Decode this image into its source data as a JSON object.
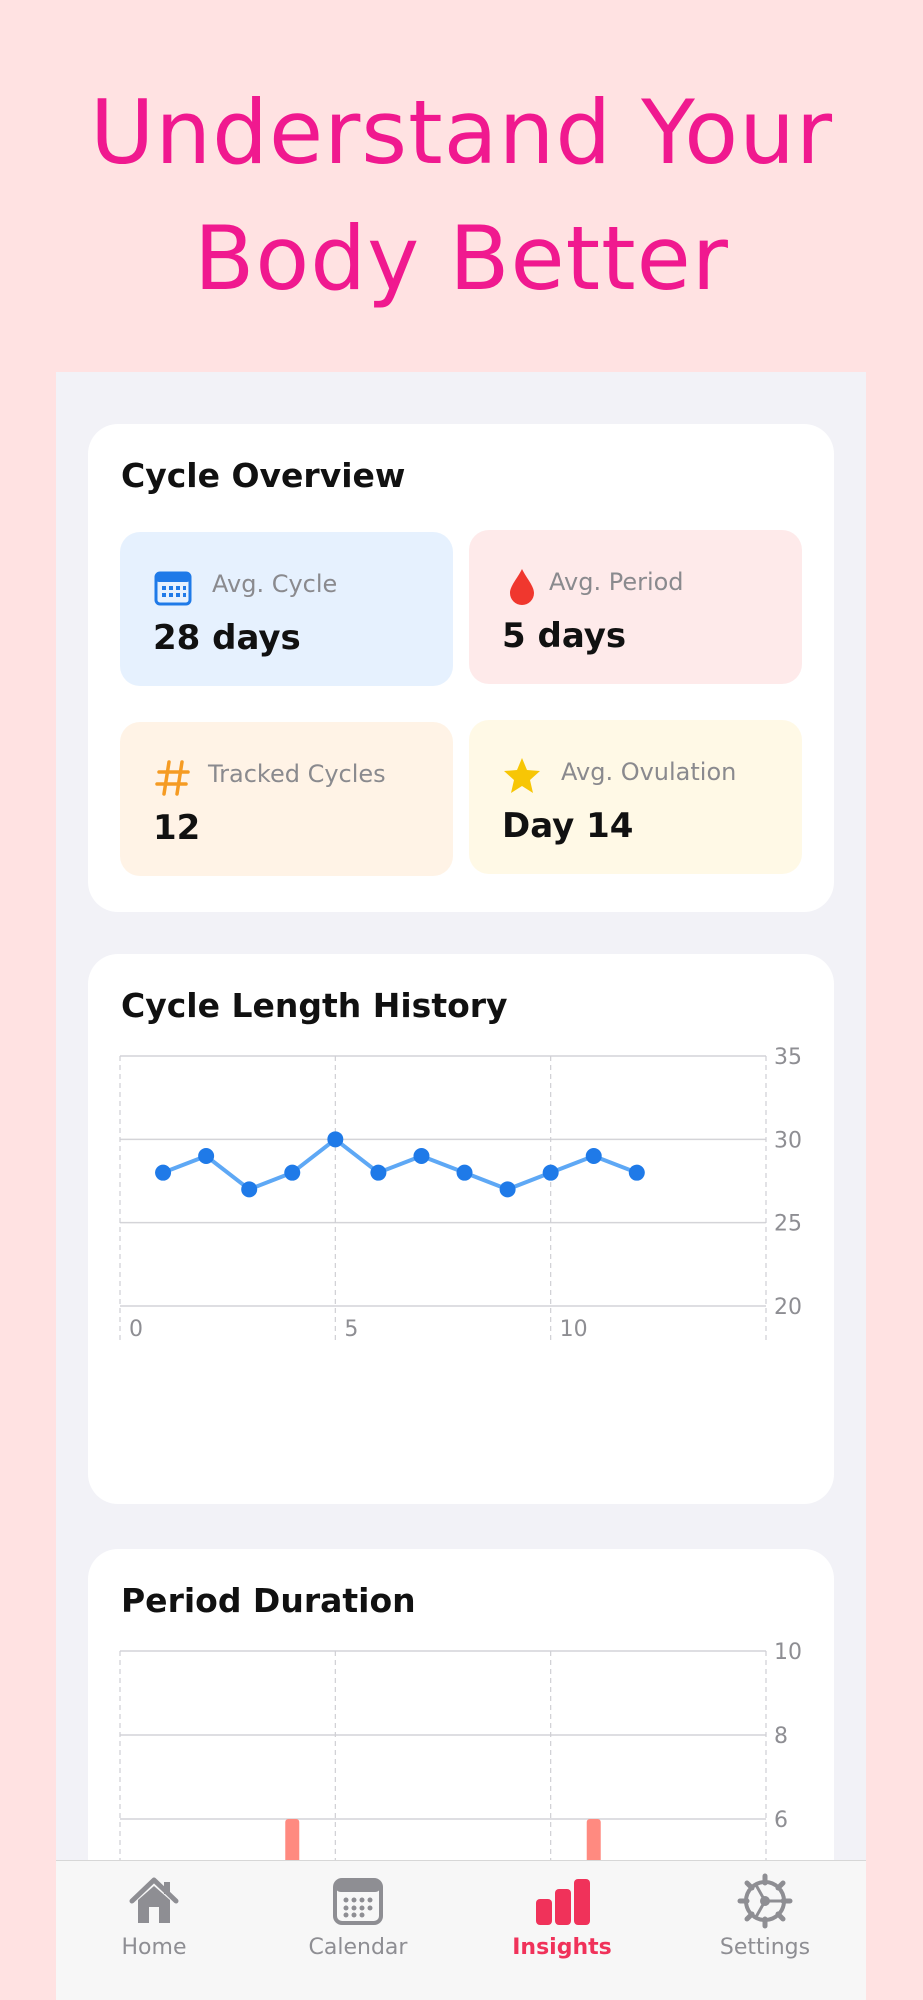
{
  "headline": {
    "line1": "Understand Your",
    "line2": "Body Better"
  },
  "overview": {
    "title": "Cycle Overview",
    "tiles": [
      {
        "icon": "calendar-icon",
        "label": "Avg. Cycle",
        "value": "28 days",
        "bg": "#e6f1fe",
        "color": "#1f7ae8"
      },
      {
        "icon": "drop-icon",
        "label": "Avg. Period",
        "value": "5 days",
        "bg": "#feeaea",
        "color": "#f0372e"
      },
      {
        "icon": "hash-icon",
        "label": "Tracked Cycles",
        "value": "12",
        "bg": "#fff3e6",
        "color": "#f59b23"
      },
      {
        "icon": "star-icon",
        "label": "Avg. Ovulation",
        "value": "Day 14",
        "bg": "#fff9e6",
        "color": "#f7c605"
      }
    ]
  },
  "charts": [
    {
      "title": "Cycle Length History",
      "chart_data": {
        "type": "line",
        "x": [
          1,
          2,
          3,
          4,
          5,
          6,
          7,
          8,
          9,
          10,
          11,
          12
        ],
        "values": [
          28,
          29,
          27,
          28,
          30,
          28,
          29,
          28,
          27,
          28,
          29,
          28
        ],
        "xlim": [
          0,
          15
        ],
        "xticks": [
          "0",
          "5",
          "10"
        ],
        "ylim": [
          20,
          35
        ],
        "yticks": [
          "20",
          "25",
          "30",
          "35"
        ],
        "color": "#1f7ae8",
        "line_color": "#5ea8f5"
      }
    },
    {
      "title": "Period Duration",
      "chart_data": {
        "type": "bar",
        "x": [
          4,
          11
        ],
        "values": [
          6,
          6
        ],
        "xlim": [
          0,
          15
        ],
        "ylim": [
          4,
          10
        ],
        "yticks": [
          "6",
          "8",
          "10"
        ],
        "color": "#ff8a80"
      }
    }
  ],
  "tabs": [
    {
      "icon": "house-icon",
      "label": "Home",
      "active": false
    },
    {
      "icon": "calendar-icon",
      "label": "Calendar",
      "active": false
    },
    {
      "icon": "chart-bars-icon",
      "label": "Insights",
      "active": true
    },
    {
      "icon": "gear-icon",
      "label": "Settings",
      "active": false
    }
  ],
  "colors": {
    "accent": "#f0198f",
    "active_tab": "#f0325a",
    "inactive_tab": "#8e8e93"
  }
}
